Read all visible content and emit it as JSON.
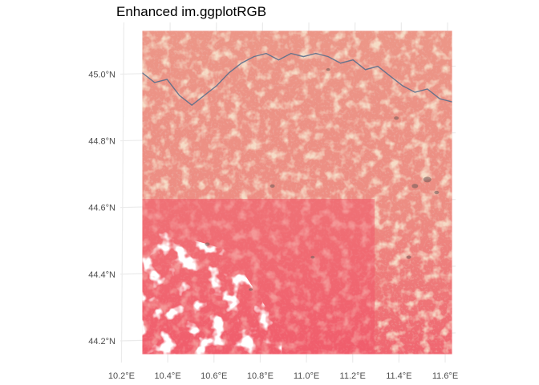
{
  "title": "Enhanced im.ggplotRGB",
  "chart_data": {
    "type": "raster-map",
    "title": "Enhanced im.ggplotRGB",
    "xlabel": "",
    "ylabel": "",
    "x_ticks": [
      10.2,
      10.4,
      10.6,
      10.8,
      11.0,
      11.2,
      11.4,
      11.6
    ],
    "x_tick_labels": [
      "10.2°E",
      "10.4°E",
      "10.6°E",
      "10.8°E",
      "11.0°E",
      "11.2°E",
      "11.4°E",
      "11.6°E"
    ],
    "y_ticks": [
      44.2,
      44.4,
      44.6,
      44.8,
      45.0
    ],
    "y_tick_labels": [
      "44.2°N",
      "44.4°N",
      "44.6°N",
      "44.8°N",
      "45.0°N"
    ],
    "xlim": [
      10.195,
      11.645
    ],
    "ylim": [
      44.135,
      45.155
    ],
    "raster_extent": {
      "xmin": 10.29,
      "xmax": 11.63,
      "ymin": 44.16,
      "ymax": 45.13
    },
    "grid": true,
    "colors": {
      "gridline": "#ebebeb",
      "vegetation_red": "#f0616e",
      "dry_tan": "#e8bd9a",
      "dark_patch": "#6b5a55",
      "cloud": "#ffffff",
      "river": "#5a6f8c"
    }
  }
}
